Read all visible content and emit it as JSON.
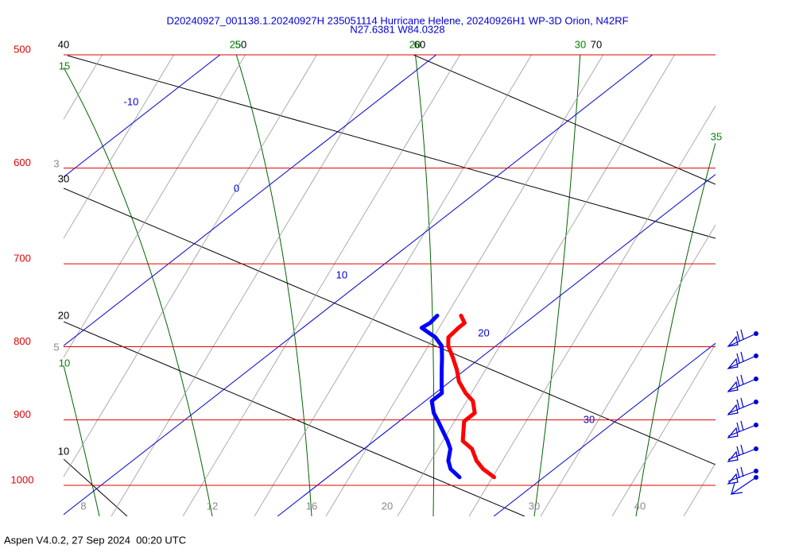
{
  "header": {
    "title_line1": "D20240927_001138.1.20240927H 235051114 Hurricane Helene, 20240926H1 WP-3D Orion, N42RF",
    "title_line2": "N27.6381 W84.0328"
  },
  "chart_data": {
    "type": "skewt",
    "ylim": [
      1000,
      500
    ],
    "yticks": [
      500,
      600,
      700,
      800,
      900,
      1000
    ],
    "log_scale": true,
    "isobar_color": "#e00000",
    "isotherm_color": "#0000d0",
    "isotherms": [
      -10,
      0,
      10,
      20,
      30
    ],
    "dry_adiabat_labels": [
      40,
      30,
      20,
      10,
      50,
      60,
      70
    ],
    "moist_adiabat_labels": [
      15,
      10,
      25,
      20,
      30,
      35
    ],
    "mixing_ratio_labels": [
      3,
      5,
      8,
      12,
      16,
      20,
      30,
      40
    ],
    "pressure": [
      761,
      770,
      776,
      788,
      799,
      814,
      830,
      846,
      862,
      873,
      890,
      902,
      931,
      943,
      961,
      974,
      987
    ],
    "series": [
      {
        "color": "#ff0000",
        "values": [
          16.6,
          17.2,
          17.2,
          17.3,
          17.8,
          18.7,
          19.6,
          20.4,
          21.4,
          22.2,
          23.0,
          23.0,
          24.1,
          25.0,
          25.9,
          26.7,
          27.7
        ]
      },
      {
        "color": "#0000ff",
        "values": [
          15.5,
          15.6,
          15.5,
          16.7,
          17.5,
          18.2,
          18.9,
          19.6,
          20.3,
          20.3,
          21.1,
          21.8,
          23.4,
          24.0,
          24.6,
          25.2,
          26.1
        ]
      }
    ]
  },
  "footer": "Aspen V4.0.2, 27 Sep 2024  00:20 UTC"
}
